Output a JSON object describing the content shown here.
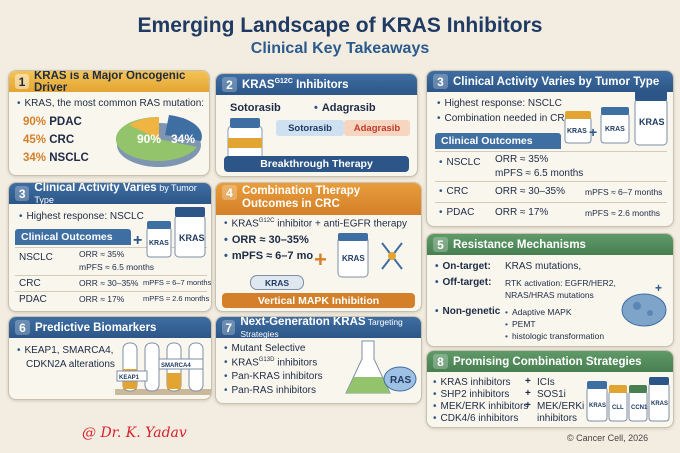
{
  "title": "Emerging Landscape of KRAS Inhibitors",
  "subtitle": "Clinical Key Takeaways",
  "p1": {
    "num": "1",
    "heading": "KRAS is a Major Oncogenic Driver",
    "intro": "KRAS, the most common RAS mutation:",
    "stats": [
      {
        "pct": "90%",
        "label": "PDAC"
      },
      {
        "pct": "45%",
        "label": "CRC"
      },
      {
        "pct": "34%",
        "label": "NSCLC"
      }
    ],
    "pie_labels": [
      "90%",
      "34%"
    ]
  },
  "p2": {
    "num": "2",
    "heading_main": "KRAS",
    "heading_sup": "G12C",
    "heading_rest": " Inhibitors",
    "drugs": [
      "Sotorasib",
      "Adagrasib"
    ],
    "bar": [
      "Sotorasib",
      "Adagrasib"
    ],
    "band": "Breakthrough Therapy"
  },
  "p3top": {
    "num": "3",
    "heading": "Clinical Activity Varies by Tumor Type",
    "bullets": [
      "Highest response: NSCLC",
      "Combination needed in CRC"
    ],
    "table_title": "Clinical Outcomes",
    "rows": [
      {
        "tumor": "NSCLC",
        "orr": "ORR ≈ 35%",
        "pfs": "mPFS ≈ 6.5 months"
      },
      {
        "tumor": "CRC",
        "orr": "ORR ≈ 30–35%",
        "pfs": "mPFS ≈ 6–7 months"
      },
      {
        "tumor": "PDAC",
        "orr": "ORR ≈ 17%",
        "pfs": "mPFS ≈ 2.6 months"
      }
    ],
    "vial_labels": [
      "KRAS",
      "KRAS",
      "KRAS"
    ]
  },
  "p3left": {
    "num": "3",
    "heading": "Clinical Activity Varies",
    "heading_small": " by Tumor Type",
    "bullet": "Highest response: NSCLC",
    "table_title": "Clinical Outcomes",
    "rows": [
      {
        "tumor": "NSCLC",
        "orr": "ORR ≈ 35%",
        "pfs": "mPFS ≈ 6.5 months"
      },
      {
        "tumor": "CRC",
        "orr": "ORR ≈ 30–35%",
        "pfs": "mPFS ≈ 6–7 months"
      },
      {
        "tumor": "PDAC",
        "orr": "ORR ≈ 17%",
        "pfs": "mPFS ≈ 2.6 months"
      }
    ],
    "vial_labels": [
      "KRAS",
      "KRAS"
    ]
  },
  "p4": {
    "num": "4",
    "heading": "Combination Therapy",
    "heading2": "Outcomes in CRC",
    "line1_a": "KRAS",
    "line1_sup": "G12C",
    "line1_b": " inhibitor + anti-EGFR therapy",
    "line2": "ORR ≈ 30–35%",
    "line3": "mPFS ≈ 6–7 mo",
    "pill": "KRAS",
    "bottle": "KRAS",
    "band": "Vertical MAPK Inhibition"
  },
  "p5": {
    "num": "5",
    "heading": "Resistance Mechanisms",
    "on_label": "On-target:",
    "on_text": "KRAS mutations,",
    "off_label": "Off-target:",
    "off_text1": "RTK activation: EGFR/HER2,",
    "off_text2": "NRAS/HRAS mutations",
    "ng_label": "Non-genetic",
    "ng_items": [
      "Adaptive MAPK",
      "PEMT",
      "histologic transformation"
    ]
  },
  "p6": {
    "num": "6",
    "heading": "Predictive Biomarkers",
    "line1": "KEAP1, SMARCA4,",
    "line2": "CDKN2A alterations",
    "tubes": [
      "KEAP1",
      "SMARCA4"
    ]
  },
  "p7": {
    "num": "7",
    "heading": "Next-Generation KRAS",
    "heading_small": " Targeting Strategies",
    "items": [
      "Mutant Selective",
      "KRAS",
      "Pan-KRAS inhibitors",
      "Pan-RAS inhibitors"
    ],
    "item2_sup": "G13D",
    "item2_rest": " inhibitors",
    "flask_label": "RAS"
  },
  "p8": {
    "num": "8",
    "heading": "Promising Combination Strategies",
    "col1": [
      "KRAS inhibitors",
      "SHP2 inhibitors",
      "MEK/ERK inhibitors",
      "CDK4/6 inhibitors"
    ],
    "plus": [
      "+",
      "+",
      "+"
    ],
    "col2": [
      "ICIs",
      "SOS1i",
      "MEK/ERKi",
      "inhibitors"
    ],
    "vials": [
      "KRAS",
      "CLL",
      "CCN1",
      "KRAS"
    ]
  },
  "watermark": "@ Dr. K. Yadav",
  "credit": "© Cancer Cell, 2026",
  "colors": {
    "blue": "#2c5687",
    "gold": "#e3a532",
    "orange": "#d4802a",
    "green": "#487f51"
  }
}
